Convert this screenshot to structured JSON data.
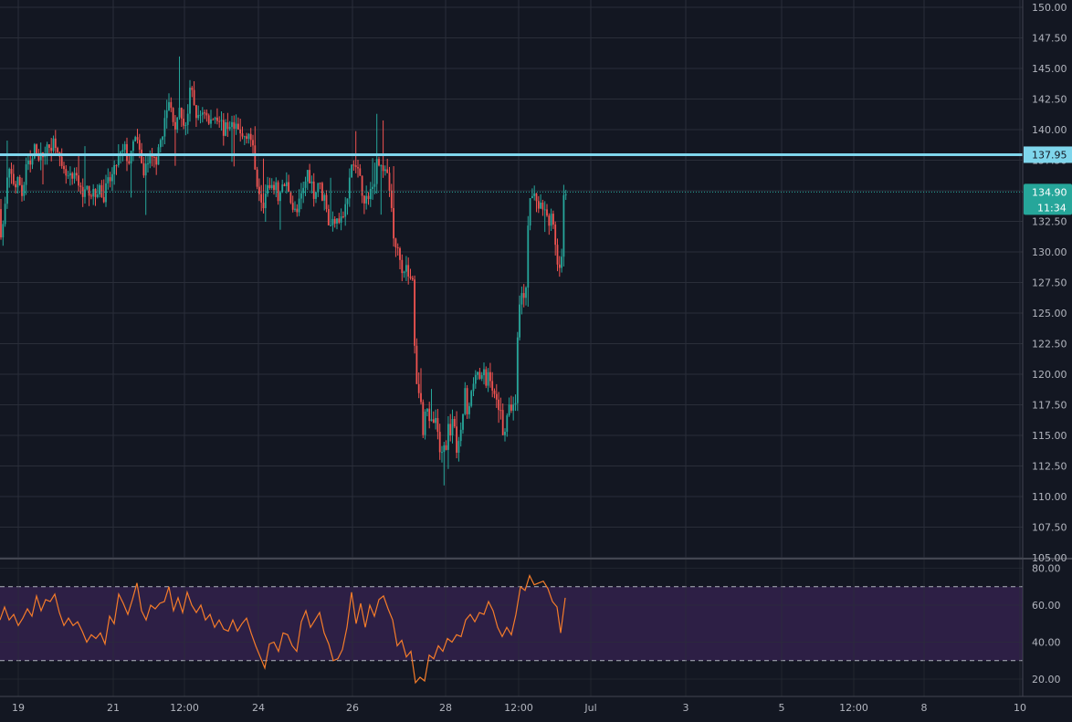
{
  "colors": {
    "background": "#131722",
    "grid": "#2a2e39",
    "axis_text": "#b2b5be",
    "up": "#26a69a",
    "down": "#ef5350",
    "horizontal_line": "#7fd6ec",
    "last_price_line": "#26a69a",
    "rsi_line": "#f57c2a",
    "rsi_band": "#2d1f45",
    "rsi_band_edge": "#b2b5be"
  },
  "chart_data": [
    {
      "type": "candlestick",
      "pane": "price",
      "ylim": [
        105,
        150
      ],
      "y_ticks": [
        "150.00",
        "147.50",
        "145.00",
        "142.50",
        "140.00",
        "137.50",
        "135.00",
        "132.50",
        "130.00",
        "127.50",
        "125.00",
        "122.50",
        "120.00",
        "117.50",
        "115.00",
        "112.50",
        "110.00",
        "107.50",
        "105.00"
      ],
      "x_ticks": [
        "19",
        "21",
        "12:00",
        "24",
        "26",
        "28",
        "12:00",
        "Jul",
        "3",
        "5",
        "12:00",
        "8",
        "10"
      ],
      "horizontal_line": {
        "value": 137.95,
        "label": "137.95"
      },
      "last_price": {
        "value": 134.9,
        "label": "134.90",
        "countdown": "11:34"
      },
      "path": [
        [
          0,
          133.5
        ],
        [
          3,
          131.2
        ],
        [
          7,
          133.8
        ],
        [
          10,
          136.6
        ],
        [
          14,
          136.2
        ],
        [
          18,
          135.3
        ],
        [
          22,
          135.9
        ],
        [
          26,
          134.5
        ],
        [
          30,
          137.2
        ],
        [
          35,
          136.9
        ],
        [
          40,
          138.7
        ],
        [
          45,
          137.6
        ],
        [
          50,
          138.2
        ],
        [
          55,
          138.5
        ],
        [
          60,
          139.1
        ],
        [
          64,
          138.9
        ],
        [
          68,
          136.6
        ],
        [
          72,
          136.3
        ],
        [
          76,
          136.0
        ],
        [
          80,
          135.8
        ],
        [
          85,
          136.1
        ],
        [
          90,
          135.0
        ],
        [
          95,
          134.9
        ],
        [
          100,
          135.1
        ],
        [
          105,
          134.4
        ],
        [
          110,
          135.5
        ],
        [
          114,
          133.9
        ],
        [
          118,
          135.4
        ],
        [
          122,
          135.9
        ],
        [
          126,
          136.4
        ],
        [
          130,
          137.6
        ],
        [
          134,
          137.9
        ],
        [
          138,
          138.4
        ],
        [
          142,
          137.3
        ],
        [
          146,
          138.0
        ],
        [
          150,
          140.0
        ],
        [
          154,
          137.9
        ],
        [
          158,
          136.4
        ],
        [
          162,
          137.3
        ],
        [
          166,
          137.4
        ],
        [
          170,
          137.5
        ],
        [
          174,
          137.7
        ],
        [
          178,
          139.5
        ],
        [
          182,
          140.7
        ],
        [
          186,
          142.2
        ],
        [
          190,
          141.3
        ],
        [
          194,
          140.1
        ],
        [
          198,
          141.4
        ],
        [
          202,
          140.6
        ],
        [
          206,
          140.6
        ],
        [
          210,
          143.4
        ],
        [
          214,
          142.0
        ],
        [
          218,
          140.7
        ],
        [
          222,
          141.5
        ],
        [
          226,
          141.6
        ],
        [
          230,
          140.4
        ],
        [
          234,
          140.9
        ],
        [
          238,
          141.2
        ],
        [
          242,
          141.0
        ],
        [
          246,
          139.9
        ],
        [
          250,
          140.2
        ],
        [
          254,
          140.6
        ],
        [
          258,
          140.0
        ],
        [
          262,
          139.9
        ],
        [
          266,
          139.3
        ],
        [
          270,
          139.6
        ],
        [
          274,
          139.9
        ],
        [
          278,
          138.4
        ],
        [
          282,
          136.0
        ],
        [
          286,
          134.9
        ],
        [
          290,
          134.0
        ],
        [
          294,
          135.4
        ],
        [
          298,
          134.7
        ],
        [
          302,
          135.6
        ],
        [
          306,
          134.5
        ],
        [
          310,
          135.1
        ],
        [
          314,
          135.6
        ],
        [
          318,
          135.1
        ],
        [
          322,
          133.6
        ],
        [
          326,
          133.0
        ],
        [
          330,
          134.3
        ],
        [
          334,
          135.1
        ],
        [
          338,
          136.6
        ],
        [
          342,
          135.8
        ],
        [
          346,
          134.5
        ],
        [
          350,
          135.9
        ],
        [
          354,
          134.6
        ],
        [
          358,
          134.4
        ],
        [
          362,
          131.8
        ],
        [
          366,
          132.5
        ],
        [
          370,
          133.1
        ],
        [
          374,
          132.6
        ],
        [
          378,
          133.1
        ],
        [
          382,
          134.4
        ],
        [
          386,
          137.1
        ],
        [
          390,
          137.1
        ],
        [
          394,
          136.3
        ],
        [
          398,
          135.0
        ],
        [
          402,
          134.1
        ],
        [
          406,
          135.1
        ],
        [
          410,
          134.9
        ],
        [
          414,
          137.7
        ],
        [
          418,
          136.9
        ],
        [
          422,
          136.9
        ],
        [
          426,
          136.0
        ],
        [
          430,
          133.8
        ],
        [
          434,
          129.9
        ],
        [
          438,
          130.5
        ],
        [
          442,
          128.5
        ],
        [
          446,
          128.8
        ],
        [
          450,
          127.8
        ],
        [
          454,
          127.4
        ],
        [
          456,
          120.6
        ],
        [
          459,
          118.9
        ],
        [
          462,
          117.9
        ],
        [
          465,
          115.1
        ],
        [
          468,
          118.6
        ],
        [
          471,
          115.7
        ],
        [
          474,
          115.9
        ],
        [
          477,
          116.3
        ],
        [
          480,
          115.6
        ],
        [
          483,
          113.4
        ],
        [
          486,
          114.3
        ],
        [
          489,
          113.6
        ],
        [
          492,
          115.9
        ],
        [
          495,
          115.4
        ],
        [
          498,
          116.1
        ],
        [
          501,
          113.6
        ],
        [
          504,
          114.2
        ],
        [
          507,
          115.3
        ],
        [
          510,
          119.1
        ],
        [
          513,
          116.3
        ],
        [
          516,
          117.8
        ],
        [
          519,
          118.9
        ],
        [
          522,
          120.5
        ],
        [
          525,
          120.1
        ],
        [
          528,
          119.4
        ],
        [
          531,
          120.1
        ],
        [
          534,
          119.0
        ],
        [
          537,
          120.6
        ],
        [
          540,
          118.9
        ],
        [
          543,
          118.0
        ],
        [
          546,
          117.6
        ],
        [
          549,
          117.5
        ],
        [
          552,
          115.4
        ],
        [
          555,
          115.6
        ],
        [
          558,
          116.9
        ],
        [
          562,
          117.6
        ],
        [
          566,
          117.3
        ],
        [
          568,
          123.3
        ],
        [
          571,
          126.5
        ],
        [
          574,
          126.5
        ],
        [
          577,
          126.7
        ],
        [
          580,
          133.6
        ],
        [
          583,
          134.7
        ],
        [
          586,
          134.5
        ],
        [
          589,
          134.3
        ],
        [
          592,
          133.7
        ],
        [
          595,
          133.7
        ],
        [
          598,
          134.0
        ],
        [
          601,
          132.3
        ],
        [
          604,
          133.0
        ],
        [
          607,
          132.0
        ],
        [
          610,
          130.7
        ],
        [
          613,
          127.6
        ],
        [
          616,
          129.3
        ],
        [
          619,
          134.9
        ]
      ]
    },
    {
      "type": "line",
      "pane": "rsi",
      "ylim": [
        15,
        82
      ],
      "y_ticks": [
        "80.00",
        "60.00",
        "40.00",
        "20.00"
      ],
      "bands": {
        "upper": 70,
        "lower": 30
      },
      "series": [
        {
          "values": [
            [
              0,
              52
            ],
            [
              5,
              59
            ],
            [
              10,
              52
            ],
            [
              15,
              55
            ],
            [
              20,
              49
            ],
            [
              25,
              53
            ],
            [
              30,
              58
            ],
            [
              35,
              54
            ],
            [
              40,
              65
            ],
            [
              45,
              57
            ],
            [
              50,
              63
            ],
            [
              55,
              62
            ],
            [
              60,
              66
            ],
            [
              65,
              56
            ],
            [
              70,
              49
            ],
            [
              75,
              53
            ],
            [
              80,
              49
            ],
            [
              85,
              51
            ],
            [
              90,
              46
            ],
            [
              95,
              40
            ],
            [
              100,
              44
            ],
            [
              105,
              42
            ],
            [
              110,
              45
            ],
            [
              115,
              39
            ],
            [
              120,
              54
            ],
            [
              125,
              50
            ],
            [
              130,
              66
            ],
            [
              135,
              61
            ],
            [
              140,
              55
            ],
            [
              145,
              63
            ],
            [
              150,
              72
            ],
            [
              155,
              57
            ],
            [
              160,
              52
            ],
            [
              165,
              60
            ],
            [
              170,
              58
            ],
            [
              175,
              61
            ],
            [
              180,
              62
            ],
            [
              185,
              70
            ],
            [
              190,
              57
            ],
            [
              195,
              64
            ],
            [
              200,
              56
            ],
            [
              205,
              67
            ],
            [
              210,
              60
            ],
            [
              215,
              56
            ],
            [
              220,
              60
            ],
            [
              225,
              52
            ],
            [
              230,
              55
            ],
            [
              235,
              48
            ],
            [
              240,
              52
            ],
            [
              245,
              47
            ],
            [
              250,
              46
            ],
            [
              255,
              52
            ],
            [
              260,
              46
            ],
            [
              265,
              50
            ],
            [
              270,
              53
            ],
            [
              275,
              45
            ],
            [
              280,
              38
            ],
            [
              285,
              32
            ],
            [
              290,
              26
            ],
            [
              295,
              39
            ],
            [
              300,
              40
            ],
            [
              305,
              35
            ],
            [
              310,
              45
            ],
            [
              315,
              44
            ],
            [
              320,
              38
            ],
            [
              325,
              35
            ],
            [
              330,
              51
            ],
            [
              335,
              57
            ],
            [
              340,
              48
            ],
            [
              345,
              52
            ],
            [
              350,
              56
            ],
            [
              355,
              45
            ],
            [
              360,
              39
            ],
            [
              365,
              30
            ],
            [
              370,
              31
            ],
            [
              375,
              36
            ],
            [
              380,
              48
            ],
            [
              385,
              67
            ],
            [
              390,
              50
            ],
            [
              395,
              61
            ],
            [
              400,
              48
            ],
            [
              405,
              60
            ],
            [
              410,
              54
            ],
            [
              415,
              63
            ],
            [
              420,
              65
            ],
            [
              425,
              58
            ],
            [
              430,
              52
            ],
            [
              435,
              38
            ],
            [
              440,
              41
            ],
            [
              445,
              32
            ],
            [
              450,
              35
            ],
            [
              455,
              18
            ],
            [
              460,
              21
            ],
            [
              465,
              19
            ],
            [
              470,
              33
            ],
            [
              475,
              31
            ],
            [
              480,
              38
            ],
            [
              485,
              35
            ],
            [
              490,
              42
            ],
            [
              495,
              40
            ],
            [
              500,
              44
            ],
            [
              505,
              43
            ],
            [
              510,
              52
            ],
            [
              515,
              55
            ],
            [
              520,
              51
            ],
            [
              525,
              56
            ],
            [
              530,
              55
            ],
            [
              535,
              62
            ],
            [
              540,
              57
            ],
            [
              545,
              48
            ],
            [
              550,
              43
            ],
            [
              555,
              48
            ],
            [
              560,
              44
            ],
            [
              565,
              55
            ],
            [
              570,
              70
            ],
            [
              575,
              68
            ],
            [
              580,
              76
            ],
            [
              585,
              71
            ],
            [
              590,
              72
            ],
            [
              595,
              73
            ],
            [
              600,
              69
            ],
            [
              605,
              62
            ],
            [
              610,
              59
            ],
            [
              614,
              45
            ],
            [
              619,
              64
            ]
          ]
        }
      ]
    }
  ]
}
